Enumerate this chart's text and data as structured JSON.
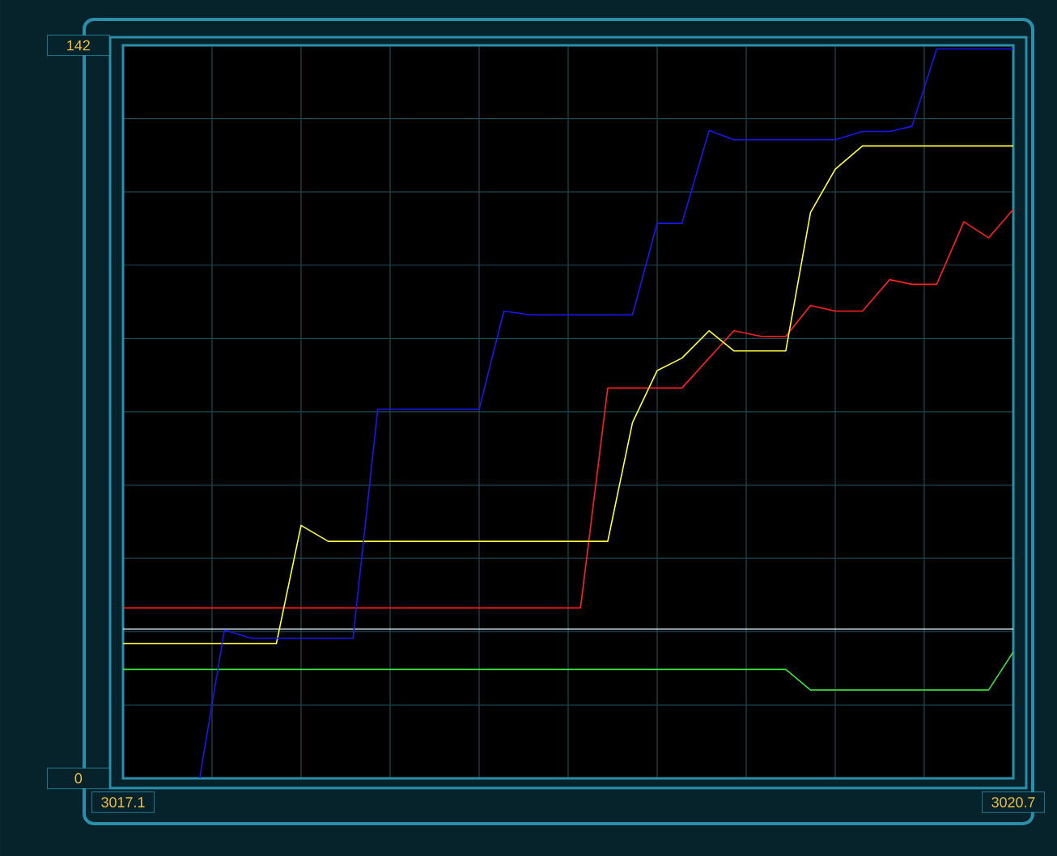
{
  "chart_data": {
    "type": "line",
    "xlim": [
      3017.1,
      3020.7
    ],
    "ylim": [
      0,
      142
    ],
    "xticks": [
      3017.1,
      {
        "value": 3017.46,
        "label": null
      },
      {
        "value": 3017.82,
        "label": null
      },
      {
        "value": 3018.18,
        "label": null
      },
      {
        "value": 3018.54,
        "label": null
      },
      {
        "value": 3018.9,
        "label": null
      },
      {
        "value": 3019.26,
        "label": null
      },
      {
        "value": 3019.62,
        "label": null
      },
      {
        "value": 3019.98,
        "label": null
      },
      {
        "value": 3020.34,
        "label": null
      },
      3020.7
    ],
    "yticks": [
      0,
      {
        "value": 14.2,
        "label": null
      },
      {
        "value": 28.4,
        "label": null
      },
      {
        "value": 42.6,
        "label": null
      },
      {
        "value": 56.8,
        "label": null
      },
      {
        "value": 71,
        "label": null
      },
      {
        "value": 85.2,
        "label": null
      },
      {
        "value": 99.4,
        "label": null
      },
      {
        "value": 113.6,
        "label": null
      },
      {
        "value": 127.8,
        "label": null
      },
      142
    ],
    "grid": true,
    "series": [
      {
        "color": "#e0f0ff",
        "x": [
          3017.1,
          3020.7
        ],
        "values": [
          28.9,
          28.9
        ]
      },
      {
        "color": "#40e040",
        "x": [
          3017.1,
          3019.78,
          3019.88,
          3020.6,
          3020.7
        ],
        "values": [
          21.1,
          21.1,
          17.1,
          17.1,
          24.5
        ]
      },
      {
        "color": "#ff2020",
        "x": [
          3017.1,
          3018.95,
          3019.06,
          3019.36,
          3019.57,
          3019.68,
          3019.78,
          3019.88,
          3019.98,
          3020.09,
          3020.2,
          3020.29,
          3020.39,
          3020.5,
          3020.6,
          3020.7
        ],
        "values": [
          33.0,
          33.0,
          75.6,
          75.6,
          86.7,
          85.6,
          85.6,
          91.6,
          90.5,
          90.5,
          96.6,
          95.7,
          95.7,
          107.8,
          104.7,
          110.2
        ]
      },
      {
        "color": "#ffff40",
        "x": [
          3017.1,
          3017.72,
          3017.82,
          3017.93,
          3019.06,
          3019.16,
          3019.26,
          3019.36,
          3019.47,
          3019.57,
          3019.78,
          3019.88,
          3019.98,
          3020.09,
          3020.7
        ],
        "values": [
          26.1,
          26.1,
          49.0,
          45.9,
          45.9,
          68.9,
          79.0,
          81.4,
          86.7,
          82.8,
          82.8,
          109.6,
          118.0,
          122.5,
          122.5
        ]
      },
      {
        "color": "#1818f0",
        "x": [
          3017.41,
          3017.51,
          3017.62,
          3018.03,
          3018.13,
          3018.54,
          3018.64,
          3018.74,
          3019.16,
          3019.26,
          3019.36,
          3019.47,
          3019.57,
          3019.98,
          3020.09,
          3020.2,
          3020.29,
          3020.39,
          3020.7
        ],
        "values": [
          0,
          28.7,
          27.1,
          27.1,
          71.5,
          71.5,
          90.5,
          89.8,
          89.8,
          107.5,
          107.5,
          125.5,
          123.7,
          123.7,
          125.3,
          125.3,
          126.3,
          141.3,
          141.3
        ]
      }
    ]
  }
}
